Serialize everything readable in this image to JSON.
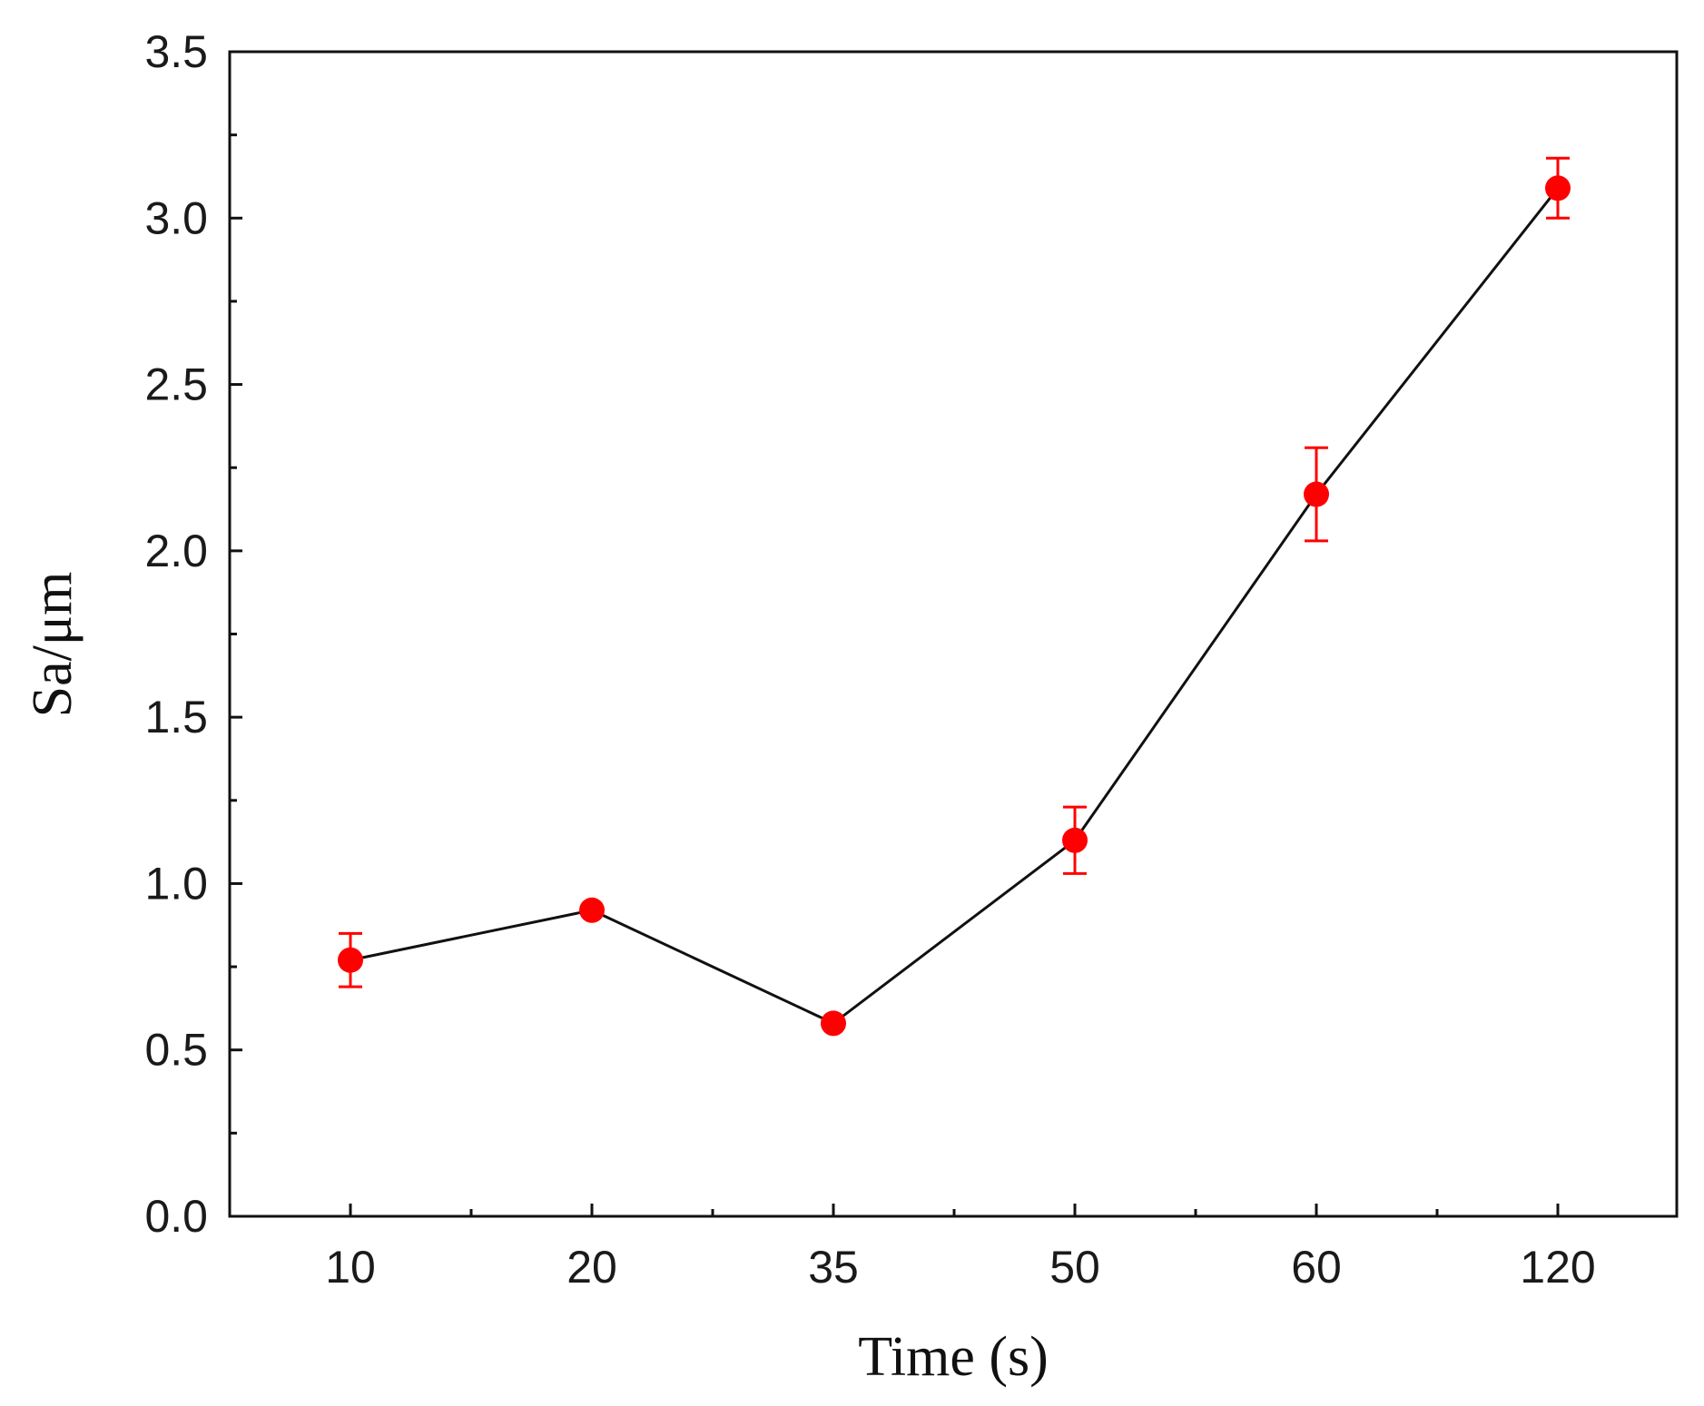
{
  "colors": {
    "axis": "#111111",
    "line": "#111111",
    "marker": "#ff0000",
    "errorbar": "#ff0000"
  },
  "chart_data": {
    "type": "line",
    "title": "",
    "xlabel": "Time (s)",
    "ylabel": "Sa/μm",
    "categories": [
      "10",
      "20",
      "35",
      "50",
      "60",
      "120"
    ],
    "ylim": [
      0.0,
      3.5
    ],
    "yticks": [
      "0.0",
      "0.5",
      "1.0",
      "1.5",
      "2.0",
      "2.5",
      "3.0",
      "3.5"
    ],
    "grid": false,
    "legend": "none",
    "series": [
      {
        "name": "Sa",
        "values": [
          0.77,
          0.92,
          0.58,
          1.13,
          2.17,
          3.09
        ],
        "errors": [
          0.08,
          0.01,
          0.01,
          0.1,
          0.14,
          0.09
        ]
      }
    ]
  }
}
